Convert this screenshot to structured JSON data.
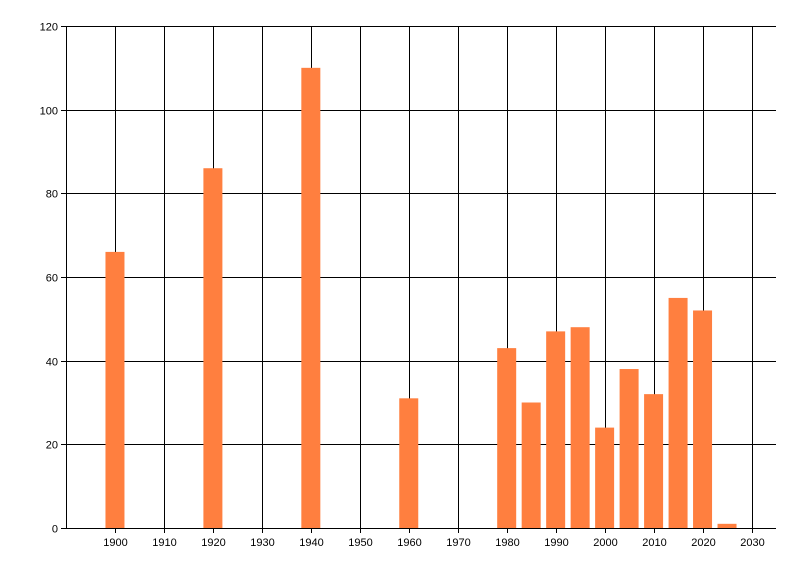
{
  "chart_data": {
    "type": "bar",
    "title": "",
    "xlabel": "",
    "ylabel": "",
    "x": [
      1900,
      1920,
      1940,
      1960,
      1980,
      1985,
      1990,
      1995,
      2000,
      2005,
      2010,
      2015,
      2020,
      2025
    ],
    "values": [
      66,
      86,
      110,
      31,
      43,
      30,
      47,
      48,
      24,
      38,
      32,
      55,
      52,
      1
    ],
    "xlim": [
      1890,
      2035
    ],
    "ylim": [
      0,
      120
    ],
    "x_ticks": [
      1900,
      1910,
      1920,
      1930,
      1940,
      1950,
      1960,
      1970,
      1980,
      1990,
      2000,
      2010,
      2020,
      2030
    ],
    "y_ticks": [
      0,
      20,
      40,
      60,
      80,
      100,
      120
    ],
    "grid": true,
    "bar_color": "#ff7f3f",
    "grid_color": "#000000"
  }
}
